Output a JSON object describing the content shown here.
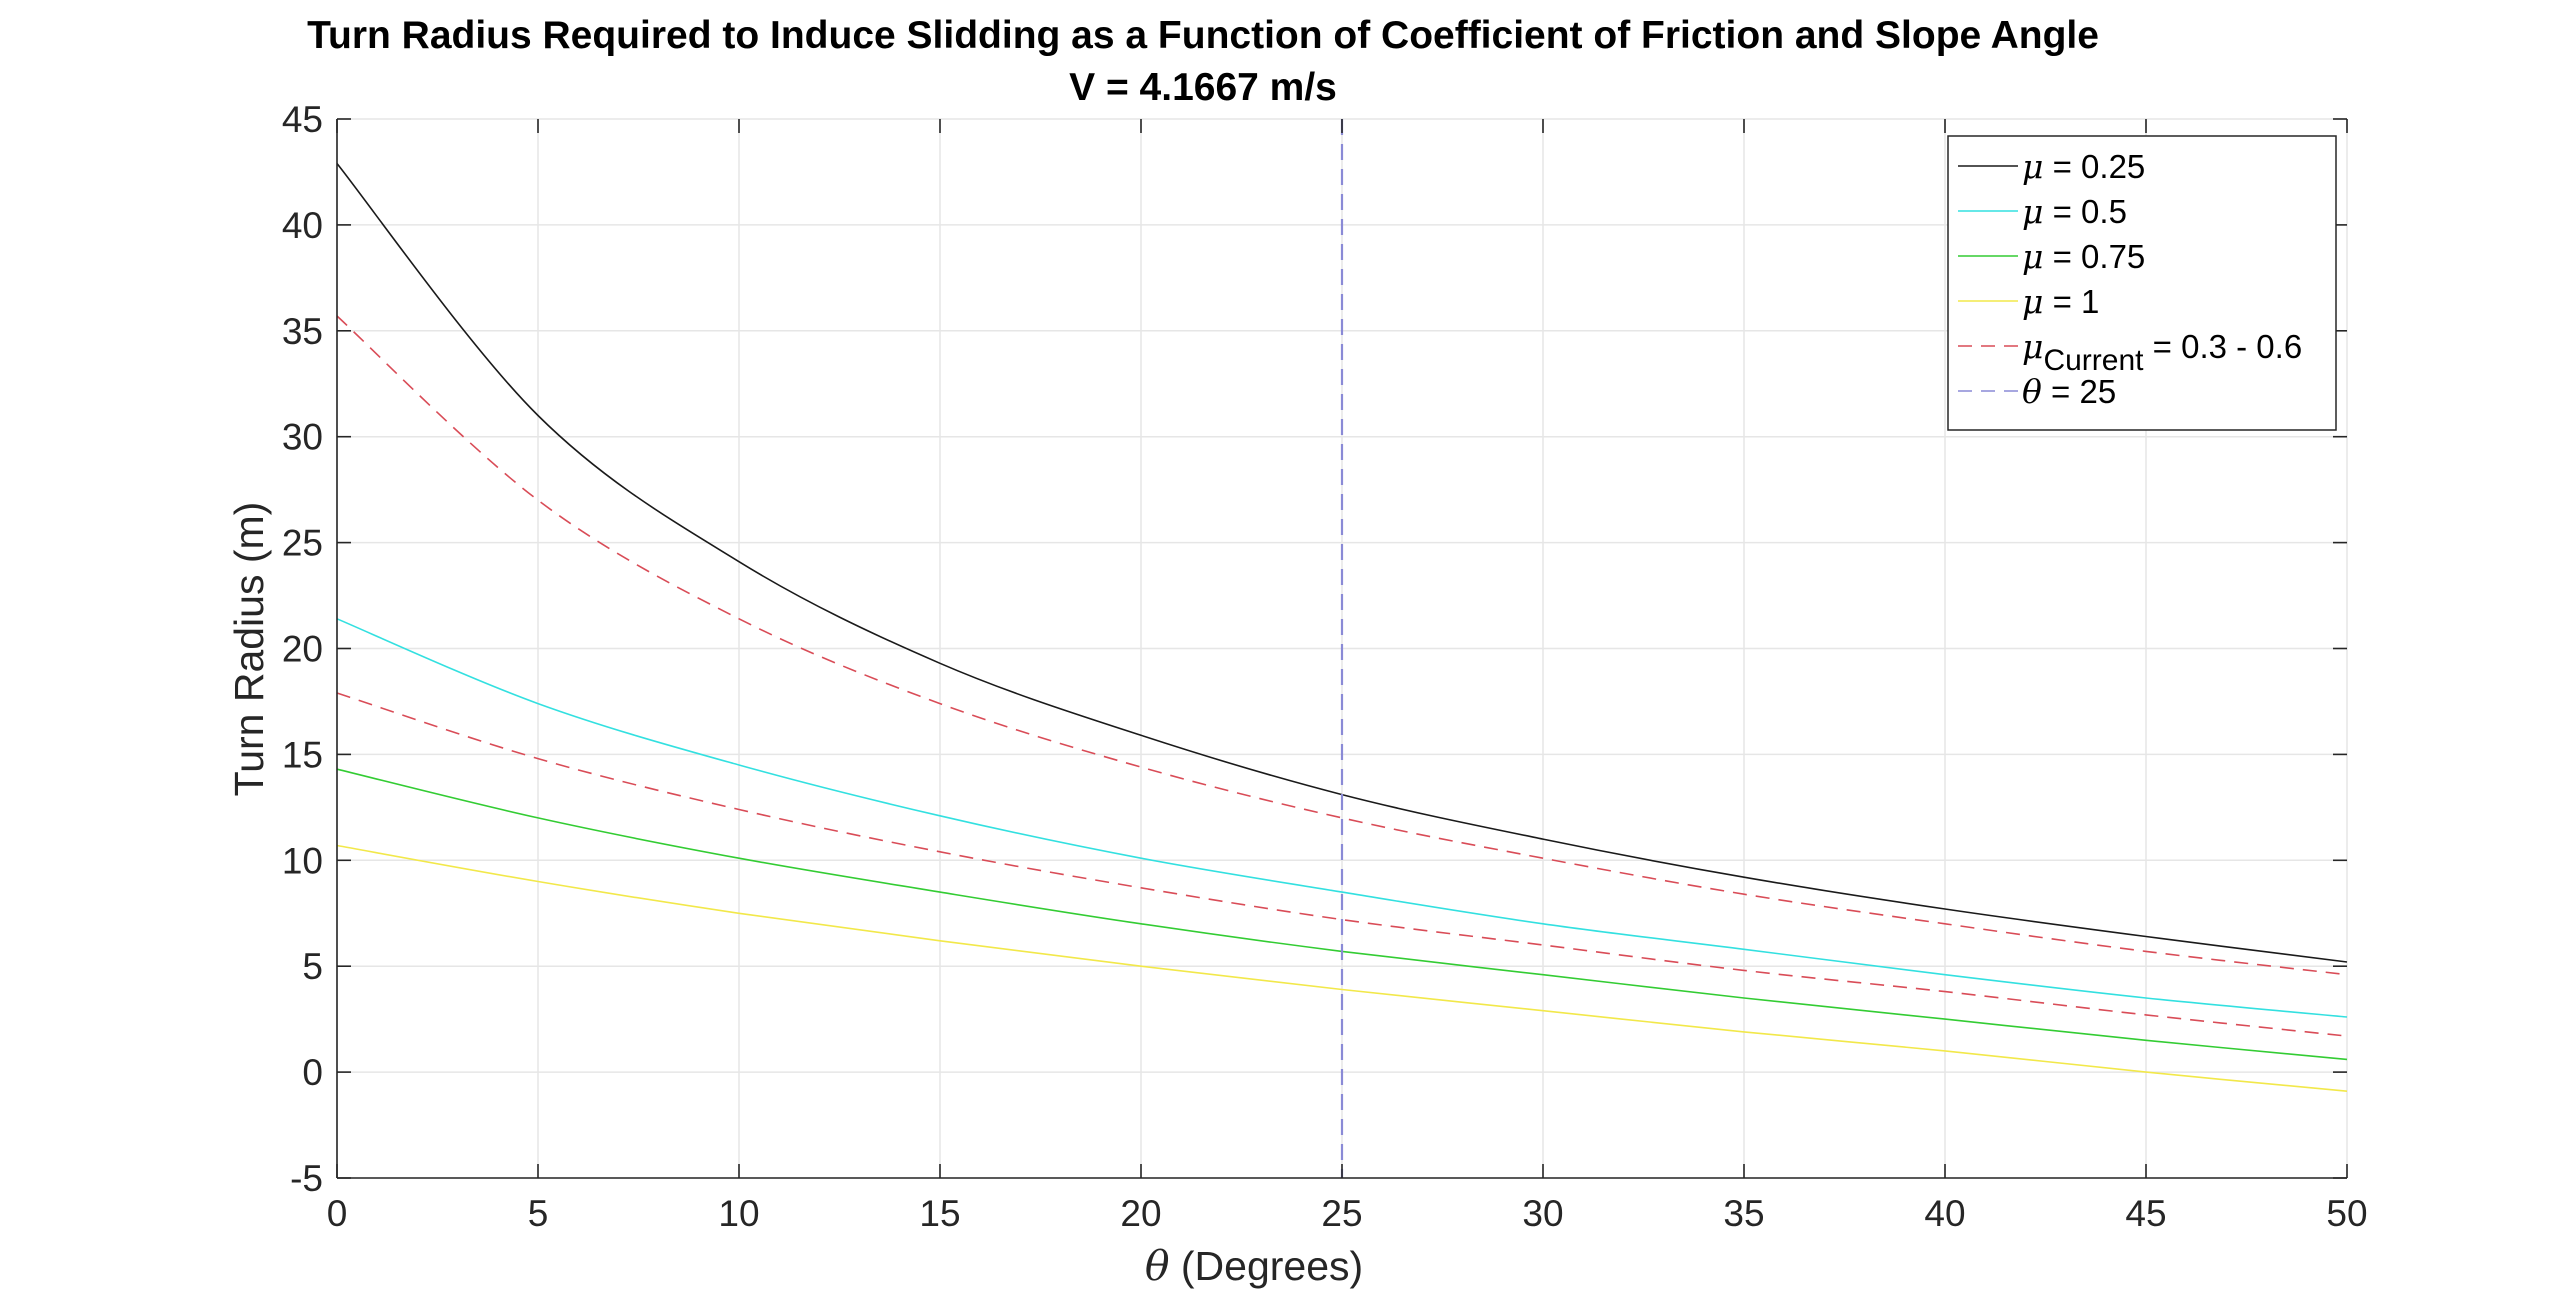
{
  "chart_data": {
    "type": "line",
    "title": "Turn Radius Required to Induce Slidding as a Function of Coefficient of Friction and Slope Angle",
    "subtitle": "V = 4.1667 m/s",
    "xlabel_symbol": "θ",
    "xlabel": " (Degrees)",
    "ylabel": "Turn Radius (m)",
    "xlim": [
      0,
      50
    ],
    "ylim": [
      -5,
      45
    ],
    "xticks": [
      0,
      5,
      10,
      15,
      20,
      25,
      30,
      35,
      40,
      45,
      50
    ],
    "yticks": [
      -5,
      0,
      5,
      10,
      15,
      20,
      25,
      30,
      35,
      40,
      45
    ],
    "grid": true,
    "legend_position": "top-right",
    "x": [
      0,
      5,
      10,
      15,
      20,
      25,
      30,
      35,
      40,
      45,
      50
    ],
    "series": [
      {
        "name": "μ = 0.25",
        "legend_symbol": "μ",
        "legend_sub": "",
        "legend_rest": " = 0.25",
        "color": "#1a1a1a",
        "dash": "solid",
        "values": [
          42.9,
          31.0,
          24.1,
          19.3,
          15.9,
          13.1,
          11.0,
          9.2,
          7.7,
          6.4,
          5.2
        ]
      },
      {
        "name": "μ = 0.5",
        "legend_symbol": "μ",
        "legend_sub": "",
        "legend_rest": " = 0.5",
        "color": "#33e0e0",
        "dash": "solid",
        "values": [
          21.4,
          17.4,
          14.5,
          12.1,
          10.1,
          8.5,
          7.0,
          5.8,
          4.6,
          3.5,
          2.6
        ]
      },
      {
        "name": "μ = 0.75",
        "legend_symbol": "μ",
        "legend_sub": "",
        "legend_rest": " = 0.75",
        "color": "#33cc33",
        "dash": "solid",
        "values": [
          14.3,
          12.0,
          10.1,
          8.5,
          7.0,
          5.7,
          4.6,
          3.5,
          2.5,
          1.5,
          0.6
        ]
      },
      {
        "name": "μ = 1",
        "legend_symbol": "μ",
        "legend_sub": "",
        "legend_rest": " = 1",
        "color": "#f2e84a",
        "dash": "solid",
        "values": [
          10.7,
          9.0,
          7.5,
          6.2,
          5.0,
          3.9,
          2.9,
          1.9,
          1.0,
          0.0,
          -0.9
        ]
      },
      {
        "name": "μCurrent = 0.3 - 0.6",
        "legend_symbol": "μ",
        "legend_sub": "Current",
        "legend_rest": " = 0.3 - 0.6",
        "color": "#d94c57",
        "dash": "dashed",
        "values": [
          35.7,
          27.0,
          21.4,
          17.4,
          14.4,
          12.0,
          10.1,
          8.4,
          7.0,
          5.7,
          4.6
        ]
      },
      {
        "name": "μCurrent lower",
        "legend_symbol": "",
        "legend_sub": "",
        "legend_rest": "",
        "color": "#d94c57",
        "dash": "dashed",
        "in_legend": false,
        "values": [
          17.9,
          14.8,
          12.4,
          10.4,
          8.7,
          7.2,
          6.0,
          4.8,
          3.8,
          2.7,
          1.7
        ]
      }
    ],
    "vline": {
      "name": "θ = 25",
      "legend_symbol": "θ",
      "legend_sub": "",
      "legend_rest": " = 25",
      "x": 25,
      "color": "#8a8ad6",
      "dash": "dashed"
    }
  }
}
